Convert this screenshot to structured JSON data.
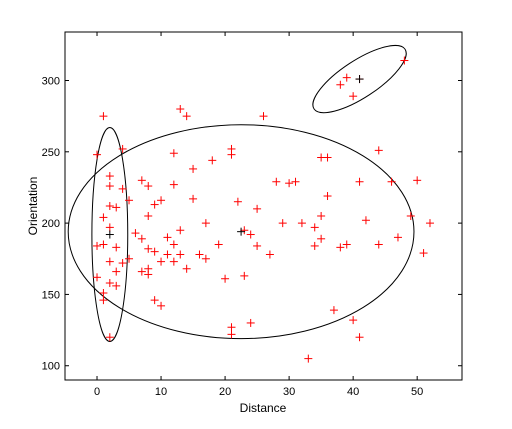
{
  "chart_data": {
    "type": "scatter",
    "xlabel": "Distance",
    "ylabel": "Orientation",
    "xlim": [
      -5,
      57
    ],
    "ylim": [
      90,
      334
    ],
    "xticks": [
      0,
      10,
      20,
      30,
      40,
      50
    ],
    "yticks": [
      100,
      150,
      200,
      250,
      300
    ],
    "grid": false,
    "colors": {
      "points": "#ff0000",
      "centers": "#000000",
      "ellipses": "#000000"
    },
    "points": [
      [
        41,
        301
      ],
      [
        39,
        302
      ],
      [
        38,
        297
      ],
      [
        40,
        289
      ],
      [
        48,
        314
      ],
      [
        0,
        248
      ],
      [
        2,
        233
      ],
      [
        2,
        226
      ],
      [
        4,
        224
      ],
      [
        2,
        212
      ],
      [
        3,
        211
      ],
      [
        1,
        204
      ],
      [
        2,
        197
      ],
      [
        1,
        185
      ],
      [
        0,
        184
      ],
      [
        3,
        183
      ],
      [
        2,
        173
      ],
      [
        4,
        172
      ],
      [
        5,
        175
      ],
      [
        0,
        162
      ],
      [
        3,
        166
      ],
      [
        2,
        158
      ],
      [
        1,
        151
      ],
      [
        1,
        146
      ],
      [
        3,
        156
      ],
      [
        2,
        120
      ],
      [
        1,
        275
      ],
      [
        4,
        252
      ],
      [
        5,
        216
      ],
      [
        6,
        193
      ],
      [
        7,
        230
      ],
      [
        8,
        226
      ],
      [
        9,
        213
      ],
      [
        8,
        205
      ],
      [
        10,
        216
      ],
      [
        7,
        189
      ],
      [
        8,
        182
      ],
      [
        9,
        180
      ],
      [
        10,
        173
      ],
      [
        8,
        168
      ],
      [
        11,
        178
      ],
      [
        7,
        166
      ],
      [
        8,
        164
      ],
      [
        9,
        146
      ],
      [
        10,
        142
      ],
      [
        11,
        190
      ],
      [
        12,
        249
      ],
      [
        13,
        280
      ],
      [
        14,
        275
      ],
      [
        12,
        227
      ],
      [
        13,
        195
      ],
      [
        12,
        185
      ],
      [
        13,
        178
      ],
      [
        12,
        173
      ],
      [
        14,
        168
      ],
      [
        15,
        217
      ],
      [
        15,
        238
      ],
      [
        16,
        178
      ],
      [
        17,
        200
      ],
      [
        17,
        175
      ],
      [
        18,
        244
      ],
      [
        19,
        185
      ],
      [
        20,
        161
      ],
      [
        21,
        252
      ],
      [
        21,
        248
      ],
      [
        22,
        215
      ],
      [
        21,
        127
      ],
      [
        21,
        122
      ],
      [
        23,
        195
      ],
      [
        24,
        192
      ],
      [
        23,
        163
      ],
      [
        24,
        130
      ],
      [
        25,
        210
      ],
      [
        25,
        184
      ],
      [
        26,
        275
      ],
      [
        27,
        178
      ],
      [
        28,
        229
      ],
      [
        29,
        200
      ],
      [
        31,
        229
      ],
      [
        32,
        200
      ],
      [
        33,
        105
      ],
      [
        34,
        197
      ],
      [
        34,
        184
      ],
      [
        35,
        246
      ],
      [
        35,
        205
      ],
      [
        35,
        189
      ],
      [
        36,
        219
      ],
      [
        38,
        183
      ],
      [
        37,
        139
      ],
      [
        39,
        185
      ],
      [
        40,
        132
      ],
      [
        41,
        229
      ],
      [
        41,
        120
      ],
      [
        42,
        202
      ],
      [
        44,
        251
      ],
      [
        44,
        185
      ],
      [
        46,
        229
      ],
      [
        47,
        190
      ],
      [
        49,
        205
      ],
      [
        50,
        230
      ],
      [
        51,
        179
      ],
      [
        52,
        200
      ],
      [
        30,
        228
      ],
      [
        36,
        246
      ]
    ],
    "centers": [
      [
        41,
        301
      ],
      [
        2,
        192
      ],
      [
        22.5,
        194
      ]
    ],
    "ellipses": [
      {
        "cx": 41,
        "cy": 301,
        "rx": 8.5,
        "ry": 13,
        "angle": 0.58
      },
      {
        "cx": 2,
        "cy": 192,
        "rx": 2.8,
        "ry": 75,
        "angle": 0
      },
      {
        "cx": 22.5,
        "cy": 194,
        "rx": 27.0,
        "ry": 75,
        "angle": 0
      }
    ]
  }
}
